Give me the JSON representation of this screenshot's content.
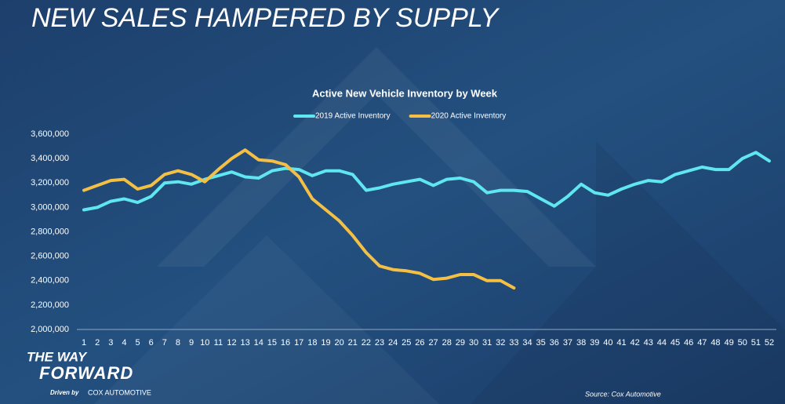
{
  "slide": {
    "heading": "NEW SALES HAMPERED BY SUPPLY",
    "brand_line1": "THE WAY",
    "brand_line2": "FORWARD",
    "driven_by": "Driven by",
    "brand_company": "COX AUTOMOTIVE",
    "source": "Source: Cox Automotive"
  },
  "chart_data": {
    "type": "line",
    "title": "Active New Vehicle Inventory by Week",
    "categories": [
      "1",
      "2",
      "3",
      "4",
      "5",
      "6",
      "7",
      "8",
      "9",
      "10",
      "11",
      "12",
      "13",
      "14",
      "15",
      "16",
      "17",
      "18",
      "19",
      "20",
      "21",
      "22",
      "23",
      "24",
      "25",
      "26",
      "27",
      "28",
      "29",
      "30",
      "31",
      "32",
      "33",
      "34",
      "35",
      "36",
      "37",
      "38",
      "39",
      "40",
      "41",
      "42",
      "43",
      "44",
      "45",
      "46",
      "47",
      "48",
      "49",
      "50",
      "51",
      "52"
    ],
    "series": [
      {
        "name": "2019 Active Inventory",
        "color": "#5fe6f0",
        "values": [
          2980000,
          3000000,
          3050000,
          3070000,
          3040000,
          3090000,
          3200000,
          3210000,
          3190000,
          3230000,
          3260000,
          3290000,
          3250000,
          3240000,
          3300000,
          3320000,
          3310000,
          3260000,
          3300000,
          3300000,
          3270000,
          3140000,
          3160000,
          3190000,
          3210000,
          3230000,
          3180000,
          3230000,
          3240000,
          3210000,
          3120000,
          3140000,
          3140000,
          3130000,
          3070000,
          3010000,
          3090000,
          3190000,
          3120000,
          3100000,
          3150000,
          3190000,
          3220000,
          3210000,
          3270000,
          3300000,
          3330000,
          3310000,
          3310000,
          3400000,
          3450000,
          3380000
        ]
      },
      {
        "name": "2020 Active Inventory",
        "color": "#f4bf45",
        "values": [
          3140000,
          3180000,
          3220000,
          3230000,
          3150000,
          3180000,
          3270000,
          3300000,
          3270000,
          3210000,
          3310000,
          3400000,
          3470000,
          3390000,
          3380000,
          3350000,
          3250000,
          3070000,
          2980000,
          2890000,
          2770000,
          2630000,
          2520000,
          2490000,
          2480000,
          2460000,
          2410000,
          2420000,
          2450000,
          2450000,
          2400000,
          2400000,
          2340000,
          null,
          null,
          null,
          null,
          null,
          null,
          null,
          null,
          null,
          null,
          null,
          null,
          null,
          null,
          null,
          null,
          null,
          null,
          null
        ]
      }
    ],
    "ylim": [
      2000000,
      3600000
    ],
    "yticks": [
      {
        "value": 2000000,
        "label": "2,000,000"
      },
      {
        "value": 2200000,
        "label": "2,200,000"
      },
      {
        "value": 2400000,
        "label": "2,400,000"
      },
      {
        "value": 2600000,
        "label": "2,600,000"
      },
      {
        "value": 2800000,
        "label": "2,800,000"
      },
      {
        "value": 3000000,
        "label": "3,000,000"
      },
      {
        "value": 3200000,
        "label": "3,200,000"
      },
      {
        "value": 3400000,
        "label": "3,400,000"
      },
      {
        "value": 3600000,
        "label": "3,600,000"
      }
    ],
    "grid": false,
    "legend": "top"
  }
}
